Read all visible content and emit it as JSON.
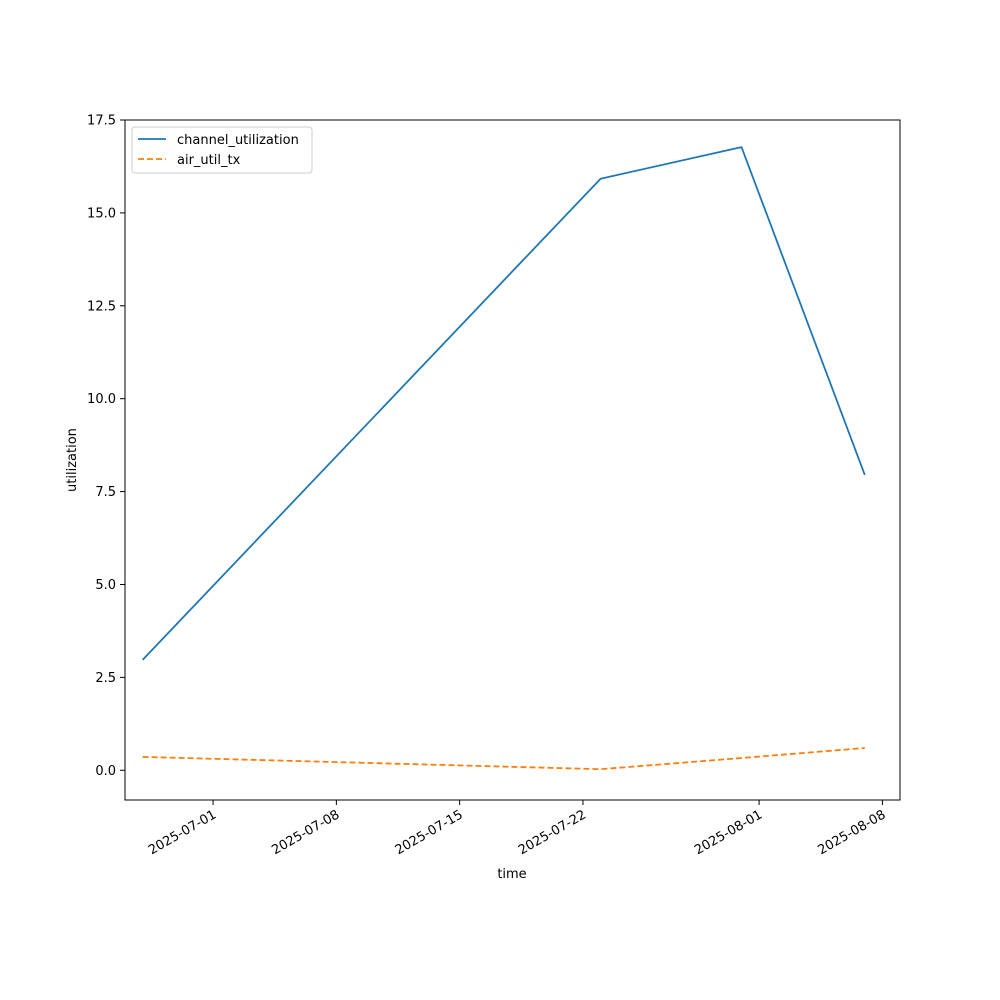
{
  "chart_data": {
    "type": "line",
    "xlabel": "time",
    "ylabel": "utilization",
    "x_type": "date",
    "xlim": [
      "2025-06-26",
      "2025-08-09"
    ],
    "ylim": [
      -0.8,
      17.5
    ],
    "xticks": [
      "2025-07-01",
      "2025-07-08",
      "2025-07-15",
      "2025-07-22",
      "2025-08-01",
      "2025-08-08"
    ],
    "yticks": [
      "0.0",
      "2.5",
      "5.0",
      "7.5",
      "10.0",
      "12.5",
      "15.0",
      "17.5"
    ],
    "x": [
      "2025-06-27",
      "2025-07-23",
      "2025-07-31",
      "2025-08-07"
    ],
    "series": [
      {
        "name": "channel_utilization",
        "values": [
          2.97,
          15.92,
          16.77,
          7.95
        ],
        "color": "#1f77b4",
        "dash": "solid"
      },
      {
        "name": "air_util_tx",
        "values": [
          0.36,
          0.03,
          0.33,
          0.6
        ],
        "color": "#ff7f0e",
        "dash": "dashed"
      }
    ],
    "grid": false,
    "legend": "upper-left"
  }
}
